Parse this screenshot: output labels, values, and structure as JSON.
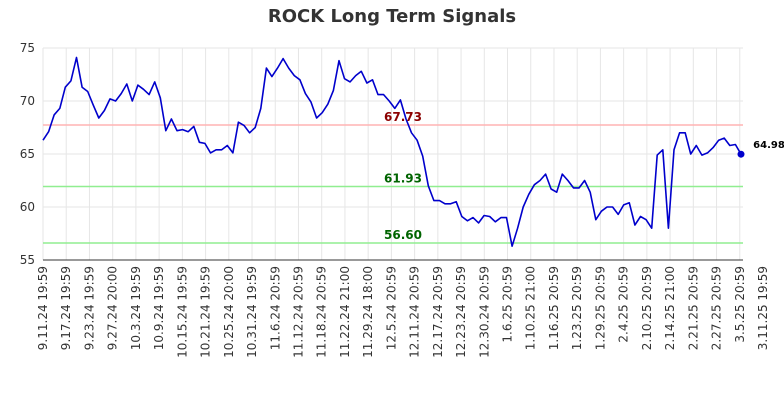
{
  "chart_data": {
    "type": "line",
    "title": "ROCK Long Term Signals",
    "xlabel": "",
    "ylabel": "",
    "ylim": [
      55,
      75
    ],
    "y_ticks": [
      "55",
      "60",
      "65",
      "70",
      "75"
    ],
    "x_tick_labels": [
      "9.11.24 19:59",
      "9.17.24 19:59",
      "9.23.24 19:59",
      "9.27.24 20:00",
      "10.3.24 19:59",
      "10.9.24 19:59",
      "10.15.24 19:59",
      "10.21.24 19:59",
      "10.25.24 20:00",
      "10.31.24 19:59",
      "11.6.24 20:59",
      "11.12.24 20:59",
      "11.18.24 20:59",
      "11.22.24 21:00",
      "11.29.24 18:00",
      "12.5.24 20:59",
      "12.11.24 20:59",
      "12.17.24 20:59",
      "12.23.24 20:59",
      "12.30.24 20:59",
      "1.6.25 20:59",
      "1.10.25 21:00",
      "1.16.25 20:59",
      "1.23.25 20:59",
      "1.29.25 20:59",
      "2.4.25 20:59",
      "2.10.25 20:59",
      "2.14.25 21:00",
      "2.21.25 20:59",
      "2.27.25 20:59",
      "3.5.25 20:59",
      "3.11.25 19:59"
    ],
    "grid": true,
    "series": [
      {
        "color": "#0000cc",
        "values": [
          66.3,
          67.1,
          68.7,
          69.3,
          71.3,
          71.9,
          74.1,
          71.3,
          70.9,
          69.6,
          68.4,
          69.1,
          70.2,
          70.0,
          70.7,
          71.6,
          70.0,
          71.5,
          71.1,
          70.6,
          71.8,
          70.3,
          67.2,
          68.3,
          67.2,
          67.3,
          67.1,
          67.6,
          66.1,
          66.0,
          65.1,
          65.4,
          65.4,
          65.8,
          65.1,
          68.0,
          67.7,
          67.0,
          67.5,
          69.3,
          73.1,
          72.3,
          73.1,
          74.0,
          73.1,
          72.4,
          72.0,
          70.7,
          69.9,
          68.4,
          68.9,
          69.7,
          71.0,
          73.8,
          72.1,
          71.8,
          72.4,
          72.8,
          71.7,
          72.0,
          70.6,
          70.6,
          70.0,
          69.3,
          70.1,
          68.3,
          67.0,
          66.3,
          64.8,
          62.0,
          60.6,
          60.6,
          60.3,
          60.3,
          60.5,
          59.1,
          58.7,
          59.0,
          58.5,
          59.2,
          59.1,
          58.6,
          59.0,
          59.0,
          56.3,
          58.0,
          60.0,
          61.2,
          62.1,
          62.5,
          63.1,
          61.7,
          61.4,
          63.1,
          62.5,
          61.8,
          61.8,
          62.5,
          61.4,
          58.8,
          59.6,
          60.0,
          60.0,
          59.3,
          60.2,
          60.4,
          58.3,
          59.1,
          58.8,
          58.0,
          64.9,
          65.4,
          58.0,
          65.4,
          67.0,
          67.0,
          65.0,
          65.8,
          64.9,
          65.1,
          65.6,
          66.3,
          66.5,
          65.8,
          65.9,
          64.98
        ]
      }
    ],
    "levels": [
      {
        "value": 67.73,
        "label": "67.73",
        "line_color": "#ffb3b3",
        "text_color": "#8b0000"
      },
      {
        "value": 61.93,
        "label": "61.93",
        "line_color": "#90ee90",
        "text_color": "#006400"
      },
      {
        "value": 56.6,
        "label": "56.60",
        "line_color": "#90ee90",
        "text_color": "#006400"
      }
    ],
    "last_value": 64.98,
    "last_label": "64.98"
  }
}
